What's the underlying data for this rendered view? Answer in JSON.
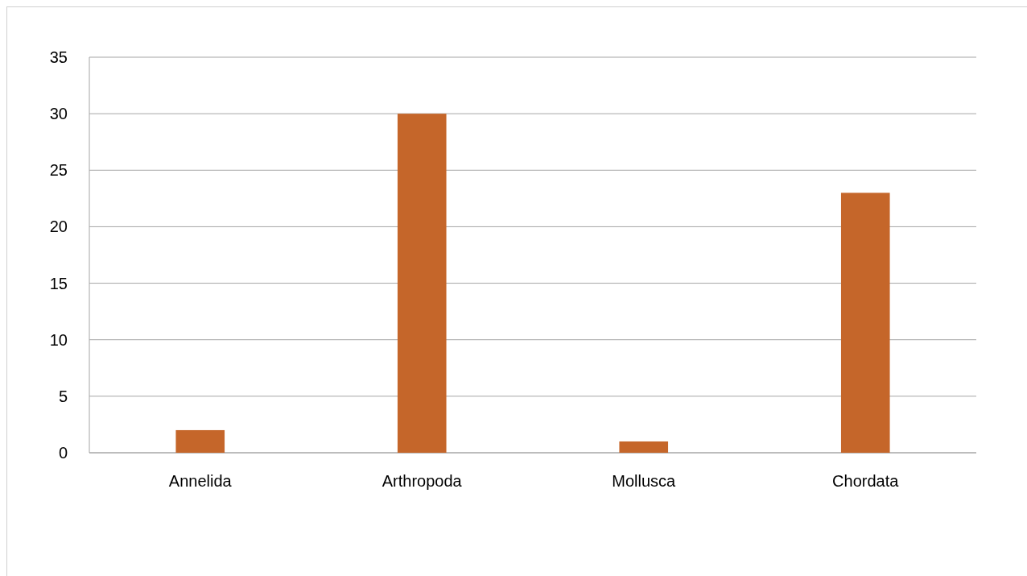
{
  "chart_data": {
    "type": "bar",
    "categories": [
      "Annelida",
      "Arthropoda",
      "Mollusca",
      "Chordata"
    ],
    "series": [
      {
        "color": "#c5662a",
        "values": [
          2,
          30,
          1,
          23
        ]
      }
    ],
    "ylim": [
      0,
      35
    ],
    "yticks": [
      0,
      5,
      10,
      15,
      20,
      25,
      30,
      35
    ],
    "grid": "y"
  }
}
